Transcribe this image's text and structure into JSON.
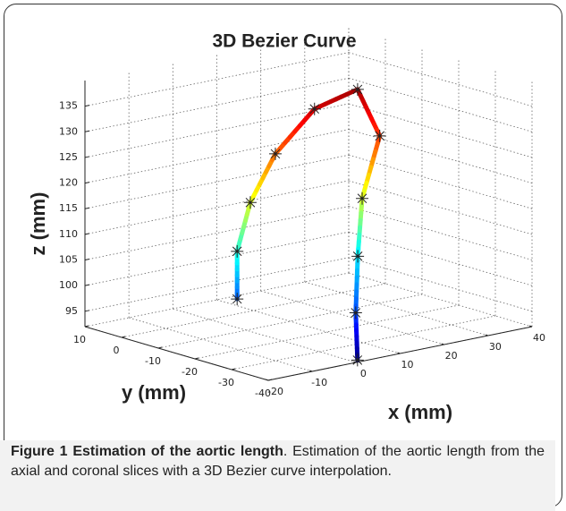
{
  "chart_data": {
    "type": "line3d",
    "title": "3D Bezier Curve",
    "xlabel": "x (mm)",
    "ylabel": "y (mm)",
    "zlabel": "z (mm)",
    "x": [
      -10.4,
      -10.4,
      -7.4,
      -1.7,
      7.2,
      17,
      13.7,
      9.7,
      8.7,
      -0.1,
      0.3
    ],
    "y": [
      -20,
      -20,
      -20,
      -20,
      -20,
      -20,
      -30,
      -30,
      -30,
      -40,
      -40
    ],
    "z": [
      102,
      111.3,
      120.3,
      128.8,
      136,
      138.1,
      131.7,
      120.2,
      109.1,
      101.7,
      92.4
    ],
    "xlim": [
      -20,
      40
    ],
    "ylim": [
      -40,
      10
    ],
    "zlim": [
      92,
      140
    ],
    "xticks": [
      -20,
      -10,
      0,
      10,
      20,
      30,
      40
    ],
    "yticks": [
      -40,
      -30,
      -20,
      -10,
      0,
      10
    ],
    "zticks": [
      95,
      100,
      105,
      110,
      115,
      120,
      125,
      130,
      135
    ],
    "grid": true,
    "colormap": "jet",
    "marker_color": "#222222"
  },
  "caption": {
    "label": "Figure 1",
    "title": "Estimation of the aortic length",
    "text": ". Estimation of the aortic length from the axial and coronal slices with a 3D Bezier curve interpolation."
  }
}
